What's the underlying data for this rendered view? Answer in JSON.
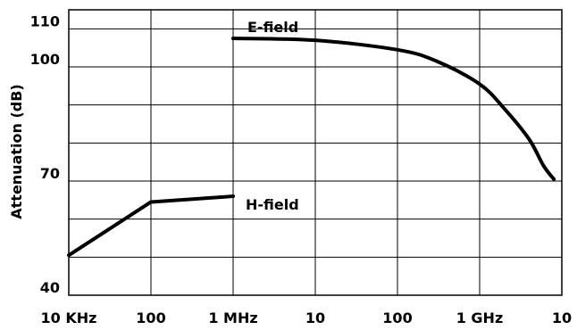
{
  "chart_data": {
    "type": "line",
    "title": "",
    "xlabel": "",
    "ylabel": "Attenuation (dB)",
    "x_scale": "log",
    "x_unit": "Hz",
    "x_ticks": [
      {
        "value": 10000,
        "label": "10 KHz"
      },
      {
        "value": 100000,
        "label": "100"
      },
      {
        "value": 1000000,
        "label": "1 MHz"
      },
      {
        "value": 10000000,
        "label": "10"
      },
      {
        "value": 100000000,
        "label": "100"
      },
      {
        "value": 1000000000,
        "label": "1 GHz"
      },
      {
        "value": 10000000000,
        "label": "10"
      }
    ],
    "y_ticks": [
      {
        "value": 40,
        "label": "40"
      },
      {
        "value": 70,
        "label": "70"
      },
      {
        "value": 100,
        "label": "100"
      },
      {
        "value": 110,
        "label": "110"
      }
    ],
    "xlim": [
      10000,
      10000000000
    ],
    "ylim": [
      40,
      115
    ],
    "grid": true,
    "series": [
      {
        "name": "E-field",
        "points": [
          {
            "x": 1000000,
            "y": 107.5
          },
          {
            "x": 10000000,
            "y": 107
          },
          {
            "x": 100000000,
            "y": 104.5
          },
          {
            "x": 300000000,
            "y": 101.5
          },
          {
            "x": 1000000000,
            "y": 95.5
          },
          {
            "x": 2000000000,
            "y": 89
          },
          {
            "x": 4000000000,
            "y": 81
          },
          {
            "x": 6000000000,
            "y": 74
          },
          {
            "x": 8000000000,
            "y": 70.5
          }
        ]
      },
      {
        "name": "H-field",
        "points": [
          {
            "x": 10000,
            "y": 50.5
          },
          {
            "x": 100000,
            "y": 64.5
          },
          {
            "x": 1000000,
            "y": 66
          }
        ]
      }
    ]
  }
}
